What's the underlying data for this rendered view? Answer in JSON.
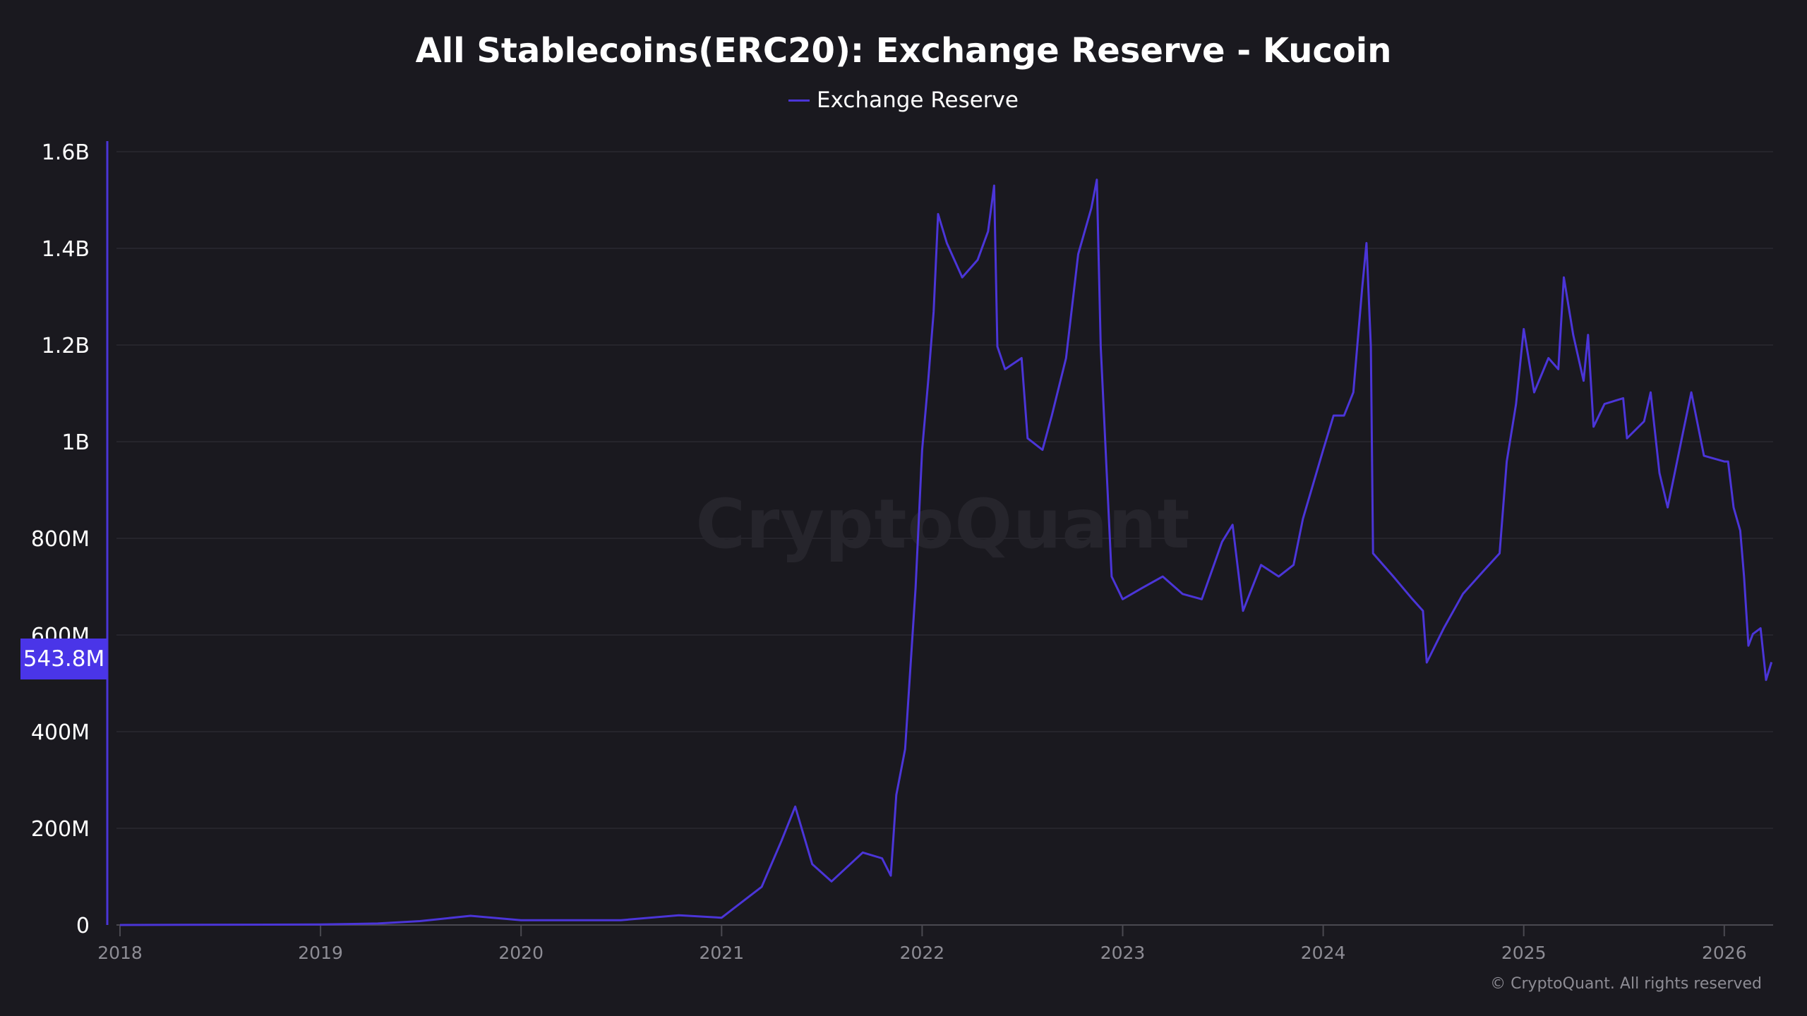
{
  "chart_data": {
    "type": "line",
    "title": "All Stablecoins(ERC20): Exchange Reserve - Kucoin",
    "xlabel": "",
    "ylabel": "",
    "xlim": [
      "2018-01-01",
      "2026-03-28"
    ],
    "ylim": [
      0,
      1600
    ],
    "y_ticks": [
      {
        "value": 0,
        "label": "0"
      },
      {
        "value": 200,
        "label": "200M"
      },
      {
        "value": 400,
        "label": "400M"
      },
      {
        "value": 600,
        "label": "600M"
      },
      {
        "value": 800,
        "label": "800M"
      },
      {
        "value": 1000,
        "label": "1B"
      },
      {
        "value": 1200,
        "label": "1.2B"
      },
      {
        "value": 1400,
        "label": "1.4B"
      },
      {
        "value": 1600,
        "label": "1.6B"
      }
    ],
    "x_ticks": [
      "2018",
      "2019",
      "2020",
      "2021",
      "2022",
      "2023",
      "2024",
      "2025",
      "2026"
    ],
    "grid": true,
    "legend_position": "top-center",
    "last_value_label": "543.8M",
    "watermark": "CryptoQuant",
    "copyright": "© CryptoQuant. All rights reserved",
    "series": [
      {
        "name": "Exchange Reserve",
        "color": "#4b35d8",
        "points": [
          [
            "2018-01-01",
            0
          ],
          [
            "2019-01-01",
            1
          ],
          [
            "2019-04-15",
            3
          ],
          [
            "2019-07-01",
            8
          ],
          [
            "2019-10-01",
            19
          ],
          [
            "2020-01-01",
            10
          ],
          [
            "2020-07-01",
            10
          ],
          [
            "2020-10-15",
            20
          ],
          [
            "2021-01-01",
            15
          ],
          [
            "2021-03-15",
            79
          ],
          [
            "2021-04-20",
            174
          ],
          [
            "2021-05-15",
            245
          ],
          [
            "2021-06-15",
            126
          ],
          [
            "2021-07-20",
            90
          ],
          [
            "2021-09-15",
            150
          ],
          [
            "2021-10-20",
            138
          ],
          [
            "2021-11-05",
            102
          ],
          [
            "2021-11-15",
            269
          ],
          [
            "2021-12-01",
            364
          ],
          [
            "2021-12-20",
            697
          ],
          [
            "2022-01-01",
            983
          ],
          [
            "2022-01-12",
            1126
          ],
          [
            "2022-01-22",
            1269
          ],
          [
            "2022-01-30",
            1471
          ],
          [
            "2022-02-15",
            1411
          ],
          [
            "2022-03-15",
            1340
          ],
          [
            "2022-04-12",
            1376
          ],
          [
            "2022-05-01",
            1435
          ],
          [
            "2022-05-12",
            1530
          ],
          [
            "2022-05-18",
            1197
          ],
          [
            "2022-06-01",
            1150
          ],
          [
            "2022-07-01",
            1173
          ],
          [
            "2022-07-12",
            1007
          ],
          [
            "2022-08-08",
            983
          ],
          [
            "2022-08-25",
            1054
          ],
          [
            "2022-09-20",
            1173
          ],
          [
            "2022-10-12",
            1388
          ],
          [
            "2022-11-05",
            1483
          ],
          [
            "2022-11-15",
            1542
          ],
          [
            "2022-11-22",
            1197
          ],
          [
            "2022-12-12",
            721
          ],
          [
            "2023-01-01",
            674
          ],
          [
            "2023-02-05",
            697
          ],
          [
            "2023-03-15",
            721
          ],
          [
            "2023-04-20",
            685
          ],
          [
            "2023-05-25",
            674
          ],
          [
            "2023-07-01",
            793
          ],
          [
            "2023-07-20",
            828
          ],
          [
            "2023-08-08",
            650
          ],
          [
            "2023-09-10",
            745
          ],
          [
            "2023-10-12",
            721
          ],
          [
            "2023-11-08",
            745
          ],
          [
            "2023-11-25",
            840
          ],
          [
            "2024-01-01",
            983
          ],
          [
            "2024-01-20",
            1054
          ],
          [
            "2024-02-08",
            1054
          ],
          [
            "2024-02-25",
            1102
          ],
          [
            "2024-03-12",
            1316
          ],
          [
            "2024-03-20",
            1411
          ],
          [
            "2024-03-28",
            1197
          ],
          [
            "2024-04-01",
            769
          ],
          [
            "2024-05-08",
            721
          ],
          [
            "2024-06-12",
            674
          ],
          [
            "2024-07-01",
            650
          ],
          [
            "2024-07-08",
            543
          ],
          [
            "2024-08-08",
            614
          ],
          [
            "2024-09-12",
            685
          ],
          [
            "2024-10-20",
            733
          ],
          [
            "2024-11-18",
            769
          ],
          [
            "2024-12-01",
            959
          ],
          [
            "2024-12-18",
            1078
          ],
          [
            "2025-01-01",
            1233
          ],
          [
            "2025-01-20",
            1102
          ],
          [
            "2025-02-15",
            1173
          ],
          [
            "2025-03-05",
            1150
          ],
          [
            "2025-03-15",
            1340
          ],
          [
            "2025-04-01",
            1221
          ],
          [
            "2025-04-20",
            1126
          ],
          [
            "2025-04-28",
            1221
          ],
          [
            "2025-05-08",
            1031
          ],
          [
            "2025-05-28",
            1078
          ],
          [
            "2025-07-01",
            1090
          ],
          [
            "2025-07-08",
            1007
          ],
          [
            "2025-08-08",
            1042
          ],
          [
            "2025-08-20",
            1102
          ],
          [
            "2025-09-05",
            935
          ],
          [
            "2025-09-20",
            864
          ],
          [
            "2025-10-20",
            1031
          ],
          [
            "2025-11-02",
            1102
          ],
          [
            "2025-11-25",
            971
          ],
          [
            "2026-01-01",
            959
          ],
          [
            "2026-01-08",
            959
          ],
          [
            "2026-01-18",
            864
          ],
          [
            "2026-01-30",
            816
          ],
          [
            "2026-02-06",
            721
          ],
          [
            "2026-02-14",
            578
          ],
          [
            "2026-02-22",
            602
          ],
          [
            "2026-03-08",
            614
          ],
          [
            "2026-03-18",
            507
          ],
          [
            "2026-03-28",
            543.8
          ]
        ]
      }
    ]
  }
}
